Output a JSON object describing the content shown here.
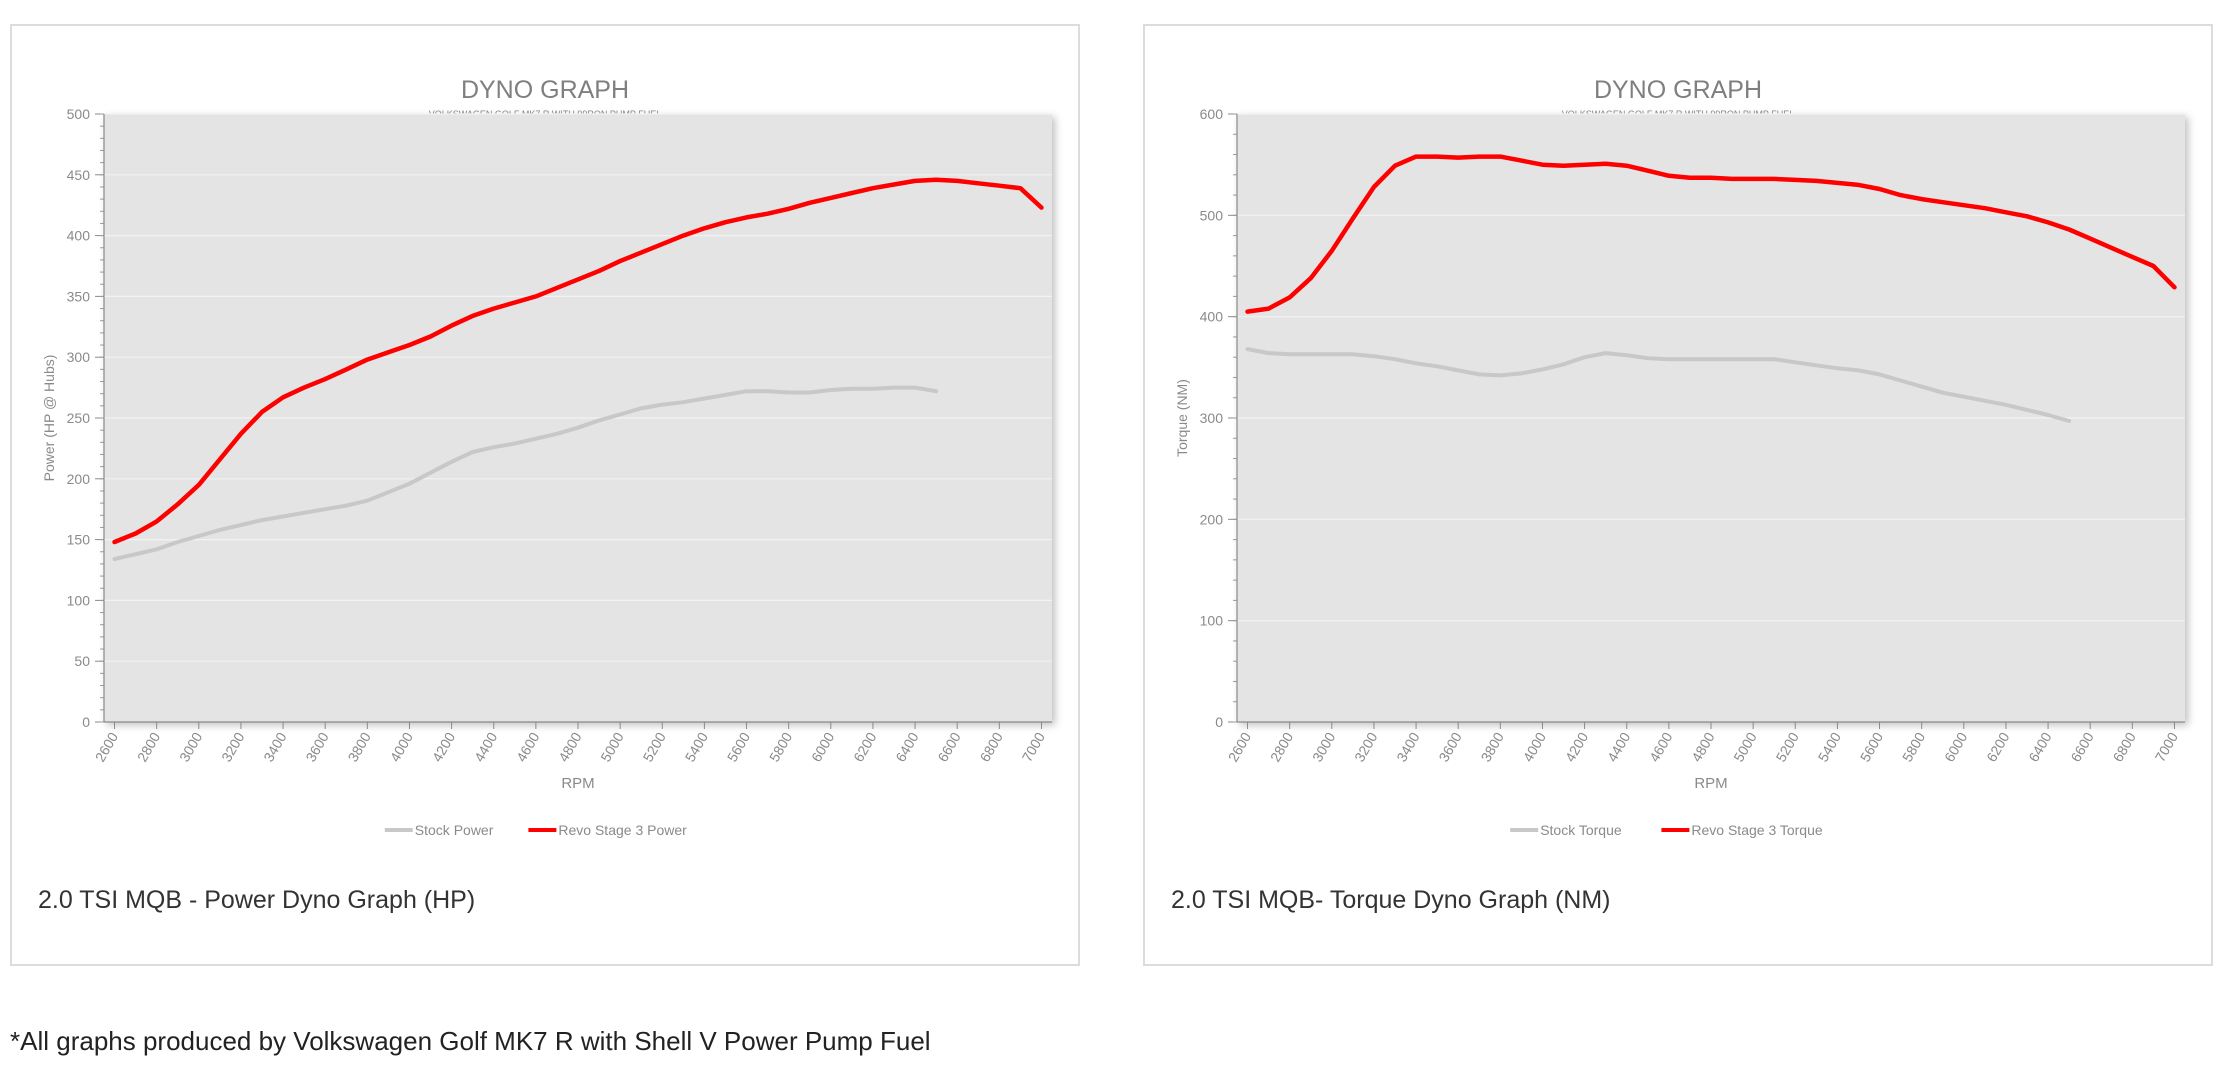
{
  "colors": {
    "stock": "#c8c8c8",
    "revo": "#ff0000",
    "plot_bg": "#e4e4e4",
    "axis_text": "#8a8a8a",
    "title_text": "#7f7f7f"
  },
  "charts": [
    {
      "caption": "2.0 TSI MQB - Power Dyno Graph (HP)",
      "chart_data": {
        "type": "line",
        "title": "DYNO GRAPH",
        "subtitle": "VOLKSWAGEN GOLF MK7 R WITH 99RON PUMP FUEL",
        "xlabel": "RPM",
        "ylabel": "Power (HP @ Hubs)",
        "xlim": [
          2550,
          7050
        ],
        "ylim": [
          0,
          500
        ],
        "yticks": [
          0,
          50,
          100,
          150,
          200,
          250,
          300,
          350,
          400,
          450,
          500
        ],
        "xticks": [
          2600,
          2800,
          3000,
          3200,
          3400,
          3600,
          3800,
          4000,
          4200,
          4400,
          4600,
          4800,
          5000,
          5200,
          5400,
          5600,
          5800,
          6000,
          6200,
          6400,
          6600,
          6800,
          7000
        ],
        "legend_position": "bottom",
        "series": [
          {
            "name": "Stock Power",
            "x": [
              2600,
              2700,
              2800,
              2900,
              3000,
              3100,
              3200,
              3300,
              3400,
              3500,
              3600,
              3700,
              3800,
              3900,
              4000,
              4100,
              4200,
              4300,
              4400,
              4500,
              4600,
              4700,
              4800,
              4900,
              5000,
              5100,
              5200,
              5300,
              5400,
              5500,
              5600,
              5700,
              5800,
              5900,
              6000,
              6100,
              6200,
              6300,
              6400,
              6500
            ],
            "values": [
              134,
              138,
              142,
              148,
              153,
              158,
              162,
              166,
              169,
              172,
              175,
              178,
              182,
              189,
              196,
              205,
              214,
              222,
              226,
              229,
              233,
              237,
              242,
              248,
              253,
              258,
              261,
              263,
              266,
              269,
              272,
              272,
              271,
              271,
              273,
              274,
              274,
              275,
              275,
              272
            ]
          },
          {
            "name": "Revo Stage 3 Power",
            "x": [
              2600,
              2700,
              2800,
              2900,
              3000,
              3100,
              3200,
              3300,
              3400,
              3500,
              3600,
              3700,
              3800,
              3900,
              4000,
              4100,
              4200,
              4300,
              4400,
              4500,
              4600,
              4700,
              4800,
              4900,
              5000,
              5100,
              5200,
              5300,
              5400,
              5500,
              5600,
              5700,
              5800,
              5900,
              6000,
              6100,
              6200,
              6300,
              6400,
              6500,
              6600,
              6700,
              6800,
              6900,
              7000
            ],
            "values": [
              148,
              155,
              165,
              179,
              195,
              216,
              237,
              255,
              267,
              275,
              282,
              290,
              298,
              304,
              310,
              317,
              326,
              334,
              340,
              345,
              350,
              357,
              364,
              371,
              379,
              386,
              393,
              400,
              406,
              411,
              415,
              418,
              422,
              427,
              431,
              435,
              439,
              442,
              445,
              446,
              445,
              443,
              441,
              439,
              423
            ]
          }
        ]
      }
    },
    {
      "caption": "2.0 TSI MQB- Torque Dyno Graph (NM)",
      "chart_data": {
        "type": "line",
        "title": "DYNO GRAPH",
        "subtitle": "VOLKSWAGEN GOLF MK7 R WITH 99RON PUMP FUEL",
        "xlabel": "RPM",
        "ylabel": "Torque (NM)",
        "xlim": [
          2550,
          7050
        ],
        "ylim": [
          0,
          600
        ],
        "yticks": [
          0,
          100,
          200,
          300,
          400,
          500,
          600
        ],
        "xticks": [
          2600,
          2800,
          3000,
          3200,
          3400,
          3600,
          3800,
          4000,
          4200,
          4400,
          4600,
          4800,
          5000,
          5200,
          5400,
          5600,
          5800,
          6000,
          6200,
          6400,
          6600,
          6800,
          7000
        ],
        "legend_position": "bottom",
        "series": [
          {
            "name": "Stock Torque",
            "x": [
              2600,
              2700,
              2800,
              2900,
              3000,
              3100,
              3200,
              3300,
              3400,
              3500,
              3600,
              3700,
              3800,
              3900,
              4000,
              4100,
              4200,
              4300,
              4400,
              4500,
              4600,
              4700,
              4800,
              4900,
              5000,
              5100,
              5200,
              5300,
              5400,
              5500,
              5600,
              5700,
              5800,
              5900,
              6000,
              6100,
              6200,
              6300,
              6400,
              6500
            ],
            "values": [
              368,
              364,
              363,
              363,
              363,
              363,
              361,
              358,
              354,
              351,
              347,
              343,
              342,
              344,
              348,
              353,
              360,
              364,
              362,
              359,
              358,
              358,
              358,
              358,
              358,
              358,
              355,
              352,
              349,
              347,
              343,
              337,
              331,
              325,
              321,
              317,
              313,
              308,
              303,
              297
            ]
          },
          {
            "name": "Revo Stage 3 Torque",
            "x": [
              2600,
              2700,
              2800,
              2900,
              3000,
              3100,
              3200,
              3300,
              3400,
              3500,
              3600,
              3700,
              3800,
              3900,
              4000,
              4100,
              4200,
              4300,
              4400,
              4500,
              4600,
              4700,
              4800,
              4900,
              5000,
              5100,
              5200,
              5300,
              5400,
              5500,
              5600,
              5700,
              5800,
              5900,
              6000,
              6100,
              6200,
              6300,
              6400,
              6500,
              6600,
              6700,
              6800,
              6900,
              7000
            ],
            "values": [
              405,
              408,
              419,
              438,
              465,
              497,
              528,
              549,
              558,
              558,
              557,
              558,
              558,
              554,
              550,
              549,
              550,
              551,
              549,
              544,
              539,
              537,
              537,
              536,
              536,
              536,
              535,
              534,
              532,
              530,
              526,
              520,
              516,
              513,
              510,
              507,
              503,
              499,
              493,
              486,
              477,
              468,
              459,
              450,
              429
            ]
          }
        ]
      }
    }
  ],
  "footnote": "*All graphs produced by Volkswagen Golf MK7 R with Shell V Power Pump Fuel"
}
